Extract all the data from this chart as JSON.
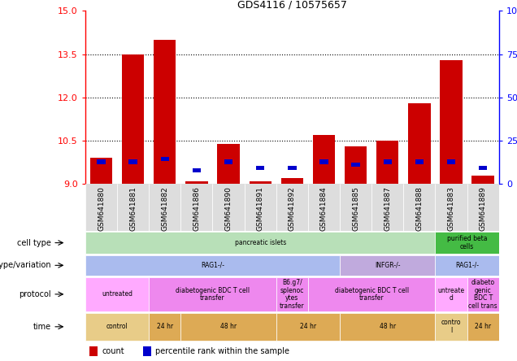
{
  "title": "GDS4116 / 10575657",
  "samples": [
    "GSM641880",
    "GSM641881",
    "GSM641882",
    "GSM641886",
    "GSM641890",
    "GSM641891",
    "GSM641892",
    "GSM641884",
    "GSM641885",
    "GSM641887",
    "GSM641888",
    "GSM641883",
    "GSM641889"
  ],
  "red_values": [
    9.9,
    13.5,
    14.0,
    9.1,
    10.4,
    9.1,
    9.2,
    10.7,
    10.3,
    10.5,
    11.8,
    13.3,
    9.3
  ],
  "blue_values": [
    9.7,
    9.7,
    9.8,
    9.4,
    9.7,
    9.5,
    9.5,
    9.7,
    9.6,
    9.7,
    9.7,
    9.7,
    9.5
  ],
  "blue_heights": [
    0.15,
    0.15,
    0.15,
    0.15,
    0.15,
    0.12,
    0.12,
    0.15,
    0.15,
    0.15,
    0.15,
    0.15,
    0.12
  ],
  "y_min": 9.0,
  "y_max": 15.0,
  "y_ticks": [
    9,
    10.5,
    12,
    13.5,
    15
  ],
  "y_right_ticks": [
    0,
    25,
    50,
    75,
    100
  ],
  "y_right_labels": [
    "0",
    "25",
    "50",
    "75",
    "100%"
  ],
  "grid_lines": [
    10.5,
    12.0,
    13.5
  ],
  "bar_width": 0.7,
  "red_color": "#cc0000",
  "blue_color": "#0000cc",
  "row_labels": [
    "cell type",
    "genotype/variation",
    "protocol",
    "time"
  ],
  "cell_type_spans": [
    {
      "label": "pancreatic islets",
      "start": 0,
      "end": 11,
      "color": "#b8e0b8"
    },
    {
      "label": "purified beta\ncells",
      "start": 11,
      "end": 13,
      "color": "#44bb44"
    }
  ],
  "genotype_spans": [
    {
      "label": "RAG1-/-",
      "start": 0,
      "end": 8,
      "color": "#aabbee"
    },
    {
      "label": "INFGR-/-",
      "start": 8,
      "end": 11,
      "color": "#c0aadd"
    },
    {
      "label": "RAG1-/-",
      "start": 11,
      "end": 13,
      "color": "#aabbee"
    }
  ],
  "protocol_spans": [
    {
      "label": "untreated",
      "start": 0,
      "end": 2,
      "color": "#ffaaff"
    },
    {
      "label": "diabetogenic BDC T cell\ntransfer",
      "start": 2,
      "end": 6,
      "color": "#ee88ee"
    },
    {
      "label": "B6.g7/\nsplenoc\nytes\ntransfer",
      "start": 6,
      "end": 7,
      "color": "#ee88ee"
    },
    {
      "label": "diabetogenic BDC T cell\ntransfer",
      "start": 7,
      "end": 11,
      "color": "#ee88ee"
    },
    {
      "label": "untreate\nd",
      "start": 11,
      "end": 12,
      "color": "#ffaaff"
    },
    {
      "label": "diabeto\ngenic\nBDC T\ncell trans",
      "start": 12,
      "end": 13,
      "color": "#ee88ee"
    }
  ],
  "time_spans": [
    {
      "label": "control",
      "start": 0,
      "end": 2,
      "color": "#e8cc88"
    },
    {
      "label": "24 hr",
      "start": 2,
      "end": 3,
      "color": "#ddaa55"
    },
    {
      "label": "48 hr",
      "start": 3,
      "end": 6,
      "color": "#ddaa55"
    },
    {
      "label": "24 hr",
      "start": 6,
      "end": 8,
      "color": "#ddaa55"
    },
    {
      "label": "48 hr",
      "start": 8,
      "end": 11,
      "color": "#ddaa55"
    },
    {
      "label": "contro\nl",
      "start": 11,
      "end": 12,
      "color": "#e8cc88"
    },
    {
      "label": "24 hr",
      "start": 12,
      "end": 13,
      "color": "#ddaa55"
    }
  ]
}
